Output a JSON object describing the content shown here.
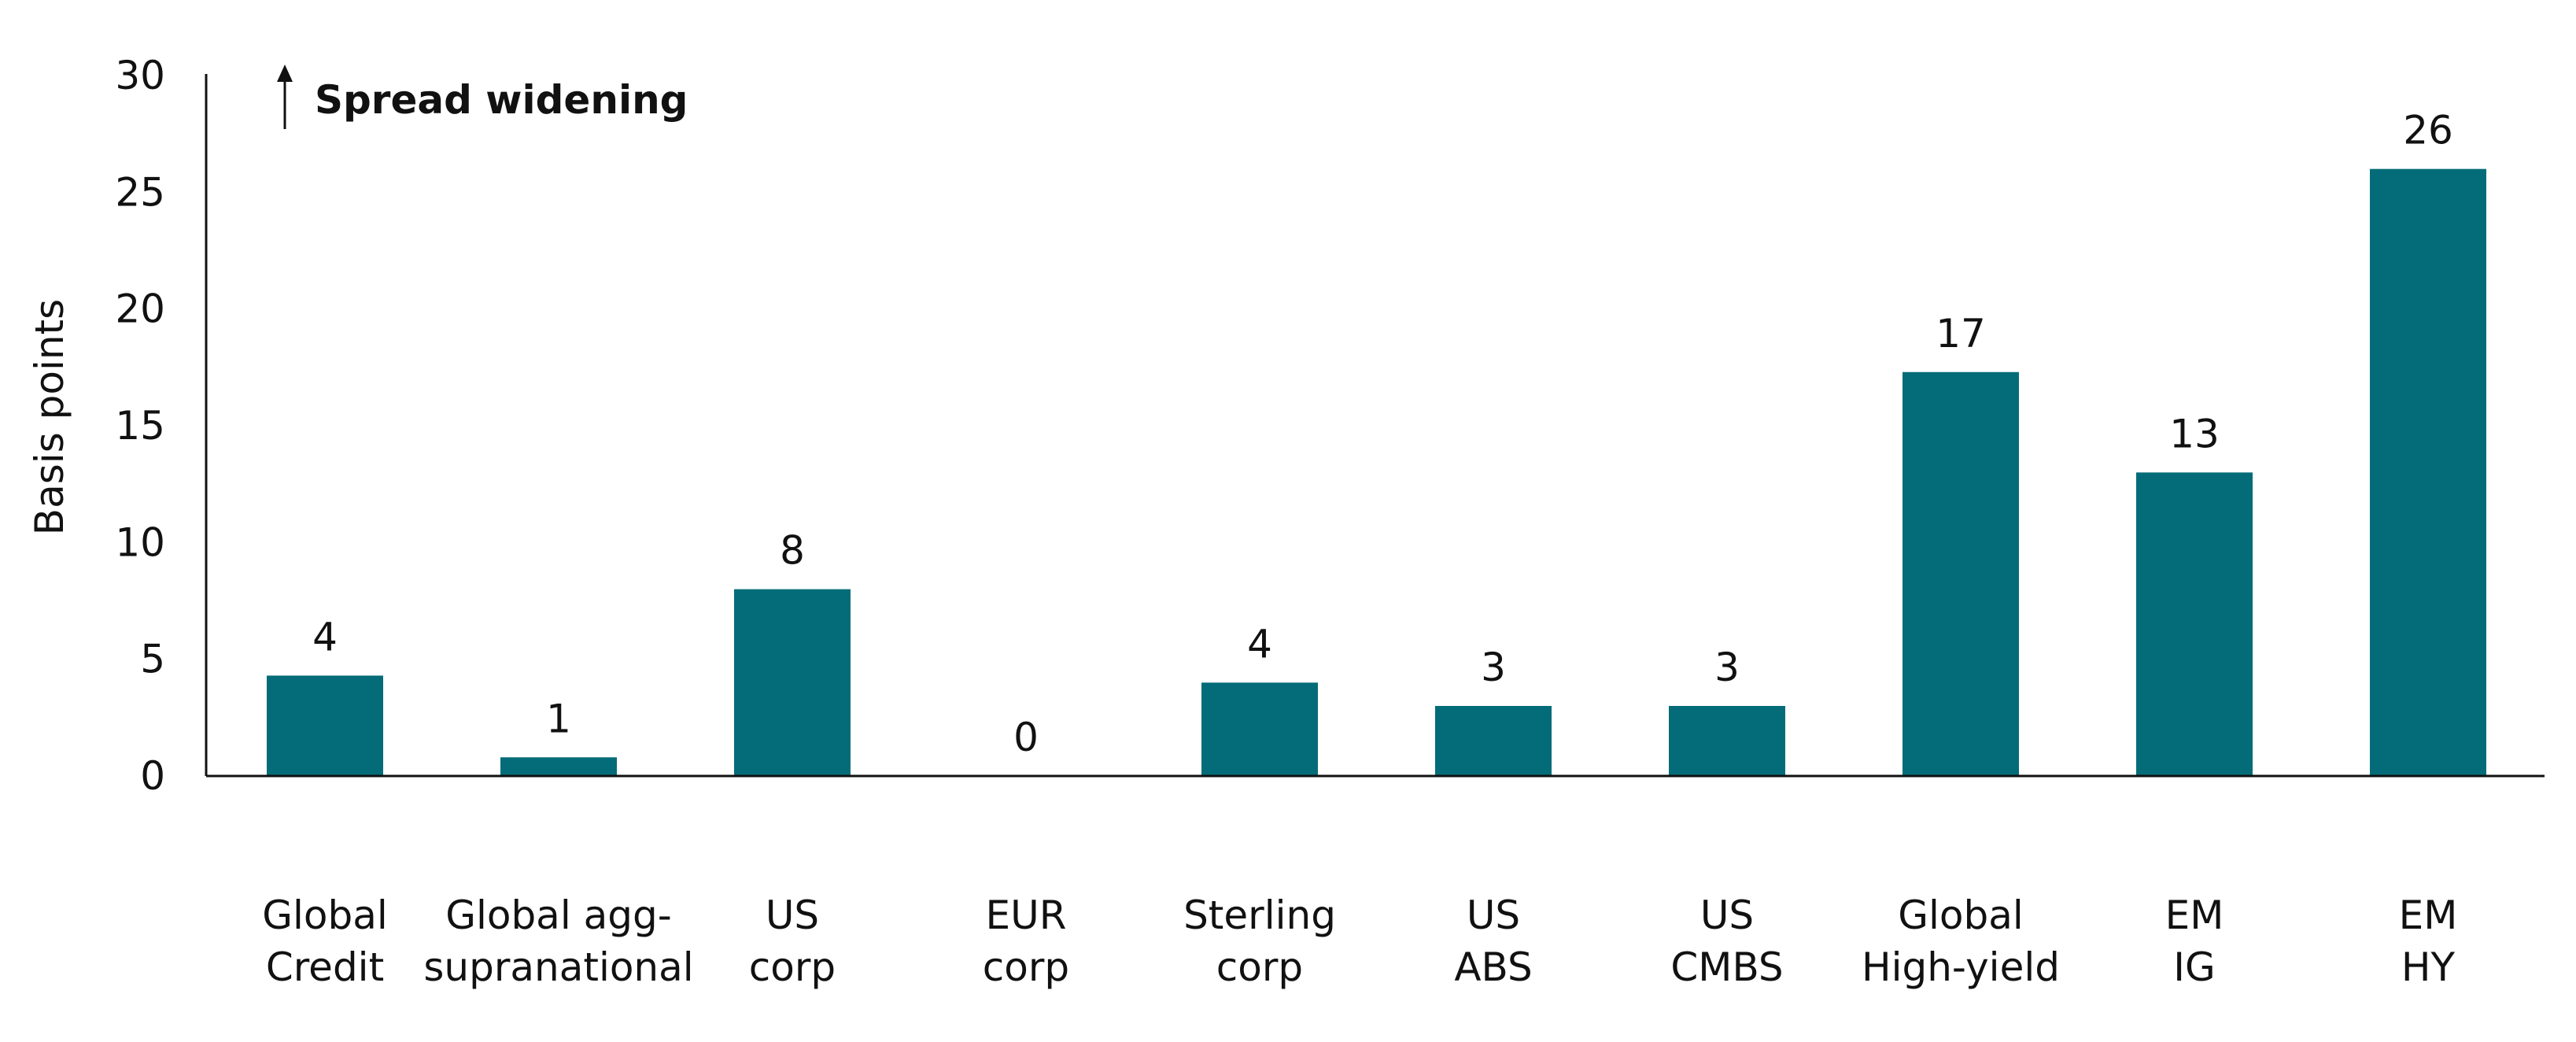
{
  "colors": {
    "bar": "#036c78",
    "axis": "#111111"
  },
  "chart_data": {
    "type": "bar",
    "ylabel": "Basis points",
    "xlabel": "",
    "ylim": [
      0,
      30
    ],
    "yticks": [
      0,
      5,
      10,
      15,
      20,
      25,
      30
    ],
    "grid": false,
    "annotation": "Spread widening",
    "categories": [
      [
        "Global",
        "Credit"
      ],
      [
        "Global agg-",
        "supranational"
      ],
      [
        "US",
        "corp"
      ],
      [
        "EUR",
        "corp"
      ],
      [
        "Sterling",
        "corp"
      ],
      [
        "US",
        "ABS"
      ],
      [
        "US",
        "CMBS"
      ],
      [
        "Global",
        "High-yield"
      ],
      [
        "EM",
        "IG"
      ],
      [
        "EM",
        "HY"
      ]
    ],
    "values": [
      4.3,
      0.8,
      8,
      0,
      4,
      3,
      3,
      17.3,
      13,
      26
    ],
    "data_labels": [
      "4",
      "1",
      "8",
      "0",
      "4",
      "3",
      "3",
      "17",
      "13",
      "26"
    ]
  }
}
